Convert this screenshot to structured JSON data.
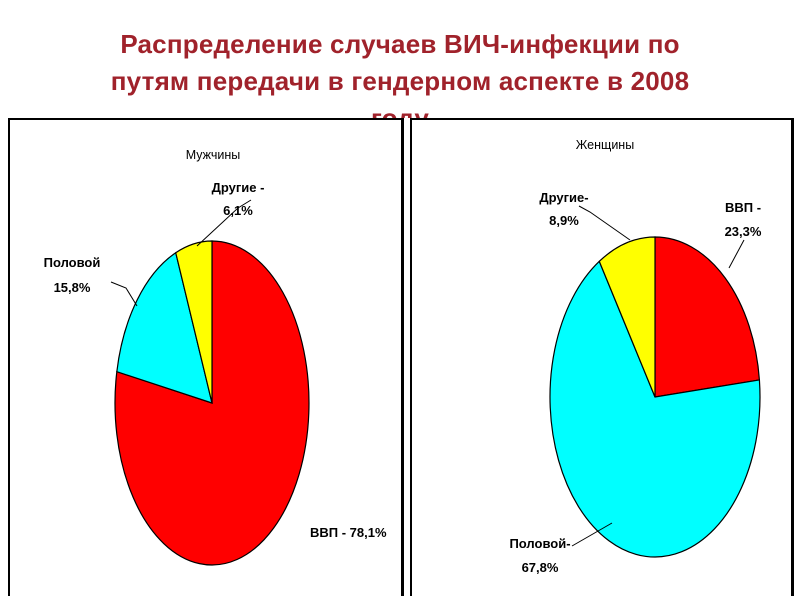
{
  "slide": {
    "title_line1": "Распределение случаев ВИЧ-инфекции по",
    "title_line2": "путям передачи в гендерном аспекте в 2008",
    "title_line3": "году",
    "title_color": "#a0222b"
  },
  "chart_data": [
    {
      "type": "pie",
      "title": "Мужчины",
      "slices": [
        {
          "name": "ВВП",
          "value": 78.1,
          "color": "#ff0000",
          "label_line1": "ВВП - 78,1%",
          "label_line2": ""
        },
        {
          "name": "Половой",
          "value": 15.8,
          "color": "#00ffff",
          "label_line1": "Половой",
          "label_line2": "15,8%"
        },
        {
          "name": "Другие",
          "value": 6.1,
          "color": "#ffff00",
          "label_line1": "Другие -",
          "label_line2": "6,1%"
        }
      ]
    },
    {
      "type": "pie",
      "title": "Женщины",
      "slices": [
        {
          "name": "ВВП",
          "value": 23.3,
          "color": "#ff0000",
          "label_line1": "ВВП -",
          "label_line2": "23,3%"
        },
        {
          "name": "Половой",
          "value": 67.8,
          "color": "#00ffff",
          "label_line1": "Половой-",
          "label_line2": "67,8%"
        },
        {
          "name": "Другие",
          "value": 8.9,
          "color": "#ffff00",
          "label_line1": "Другие-",
          "label_line2": "8,9%"
        }
      ]
    }
  ]
}
